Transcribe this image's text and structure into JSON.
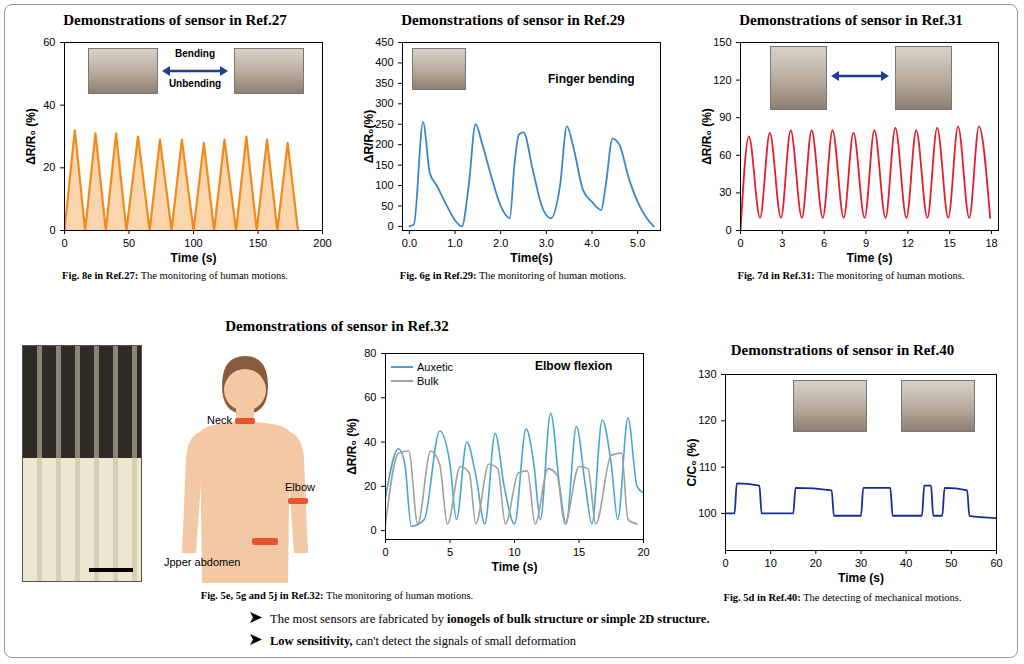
{
  "chart_data": [
    {
      "type": "area",
      "title": "Demonstrations of sensor in Ref.27",
      "caption": {
        "ref": "Fig. 8e in Ref.27:",
        "text": "The monitoring of human motions."
      },
      "annotations": [
        "Bending",
        "Unbending"
      ],
      "x_label": "Time (s)",
      "y_label": "ΔR/R₀ (%)",
      "x": [
        0,
        8,
        16,
        24,
        32,
        40,
        48,
        57,
        66,
        74,
        83,
        91,
        100,
        108,
        116,
        124,
        133,
        141,
        149,
        157,
        165,
        173,
        181
      ],
      "values": [
        0,
        32,
        0,
        31,
        0,
        31,
        0,
        30,
        0,
        29,
        0,
        29,
        0,
        28,
        0,
        29,
        0,
        30,
        0,
        29,
        0,
        28,
        0
      ],
      "color": "#f28a1a",
      "xlim": [
        0,
        200
      ],
      "xticks": [
        0,
        50,
        100,
        150,
        200
      ],
      "ylim": [
        0,
        60
      ],
      "yticks": [
        0,
        20,
        40,
        60
      ]
    },
    {
      "type": "line",
      "title": "Demonstrations of sensor in Ref.29",
      "caption": {
        "ref": "Fig. 6g in Ref.29:",
        "text": "The monitoring of human motions."
      },
      "annotations": [
        "Finger bending"
      ],
      "x_label": "Time(s)",
      "y_label": "ΔR/R₀(%)",
      "x": [
        0,
        0.1,
        0.3,
        0.45,
        0.6,
        0.8,
        1.0,
        1.15,
        1.3,
        1.45,
        1.6,
        1.8,
        2.0,
        2.2,
        2.3,
        2.4,
        2.5,
        2.7,
        2.9,
        3.1,
        3.3,
        3.45,
        3.6,
        3.8,
        4.0,
        4.2,
        4.3,
        4.45,
        4.6,
        4.8,
        5.0,
        5.2,
        5.35
      ],
      "values": [
        0,
        5,
        255,
        130,
        100,
        55,
        15,
        0,
        100,
        250,
        200,
        120,
        50,
        20,
        150,
        225,
        230,
        140,
        50,
        20,
        100,
        245,
        190,
        90,
        60,
        40,
        100,
        215,
        200,
        120,
        60,
        20,
        0
      ],
      "color": "#3a86c8",
      "xlim": [
        -0.15,
        5.5
      ],
      "xticks": [
        0,
        1,
        2,
        3,
        4,
        5
      ],
      "ylim": [
        -10,
        450
      ],
      "yticks": [
        0,
        50,
        100,
        150,
        200,
        250,
        300,
        350,
        400,
        450
      ]
    },
    {
      "type": "line",
      "title": "Demonstrations of sensor in Ref.31",
      "caption": {
        "ref": "Fig. 7d in Ref.31:",
        "text": "The monitoring of human motions."
      },
      "annotations": [],
      "x_label": "Time (s)",
      "y_label": "ΔR/R₀ (%)",
      "x": [
        0,
        0.6,
        1.4,
        2.1,
        2.9,
        3.6,
        4.4,
        5.1,
        5.9,
        6.6,
        7.4,
        8.1,
        8.9,
        9.6,
        10.4,
        11.1,
        11.9,
        12.6,
        13.4,
        14.1,
        14.9,
        15.6,
        16.4,
        17.1,
        17.9
      ],
      "values": [
        0,
        75,
        10,
        78,
        10,
        80,
        10,
        80,
        10,
        80,
        10,
        78,
        10,
        80,
        10,
        82,
        10,
        80,
        10,
        82,
        10,
        83,
        10,
        83,
        10
      ],
      "color": "#e0202a",
      "xlim": [
        0,
        18.5
      ],
      "xticks": [
        0,
        3,
        6,
        9,
        12,
        15,
        18
      ],
      "ylim": [
        0,
        150
      ],
      "yticks": [
        0,
        30,
        60,
        90,
        120,
        150
      ]
    },
    {
      "type": "line",
      "title": "Demonstrations of sensor in Ref.32",
      "caption": {
        "ref": "Fig. 5e, 5g and 5j in Ref.32:",
        "text": "The monitoring of human motions."
      },
      "annotations": [
        "Elbow flexion"
      ],
      "figure_labels": [
        "Neck",
        "Elbow",
        "Jpper abdomen"
      ],
      "x_label": "Time (s)",
      "y_label": "ΔR/R₀ (%)",
      "legend": "top-left",
      "series": [
        {
          "name": "Auxetic",
          "color": "#4ba6cf",
          "x": [
            0,
            1,
            1.5,
            2,
            3,
            4.2,
            5,
            5.5,
            6.3,
            7,
            7.7,
            8.5,
            9.2,
            10,
            10.9,
            11.5,
            12,
            12.8,
            13.5,
            14,
            14.8,
            15.5,
            16,
            16.8,
            17.5,
            18,
            18.8,
            19.5,
            20
          ],
          "values": [
            15,
            37,
            30,
            2,
            5,
            45,
            30,
            5,
            40,
            25,
            3,
            44,
            20,
            3,
            46,
            30,
            5,
            53,
            20,
            3,
            47,
            20,
            3,
            50,
            30,
            5,
            51,
            20,
            17
          ]
        },
        {
          "name": "Bulk",
          "color": "#a0a0a0",
          "x": [
            0,
            1,
            1.8,
            2.5,
            3.5,
            4.2,
            4.8,
            5.8,
            6.5,
            7,
            8,
            8.7,
            9.3,
            10.3,
            11,
            11.6,
            12.6,
            13.3,
            13.9,
            15,
            15.7,
            16.3,
            17.5,
            18.3,
            18.8,
            19.5
          ],
          "values": [
            3,
            35,
            36,
            3,
            36,
            30,
            3,
            29,
            26,
            3,
            30,
            28,
            3,
            26,
            27,
            3,
            28,
            25,
            3,
            29,
            28,
            3,
            34,
            35,
            5,
            3
          ]
        }
      ],
      "xlim": [
        0,
        20
      ],
      "xticks": [
        0,
        5,
        10,
        15,
        20
      ],
      "ylim": [
        -4,
        80
      ],
      "yticks": [
        0,
        20,
        40,
        60,
        80
      ]
    },
    {
      "type": "line",
      "title": "Demonstrations of sensor in Ref.40",
      "caption": {
        "ref": "Fig. 5d in Ref.40:",
        "text": "The detecting of mechanical motions."
      },
      "annotations": [],
      "x_label": "Time (s)",
      "y_label": "C/C₀ (%)",
      "x": [
        0,
        2,
        2.5,
        7.5,
        8,
        15,
        15.5,
        23.5,
        24,
        30,
        30.5,
        36.5,
        37,
        43.5,
        44,
        45.5,
        46,
        48,
        48.5,
        53.5,
        54,
        60
      ],
      "values": [
        100,
        100,
        106.5,
        106,
        100,
        100,
        105.5,
        105,
        99.5,
        99.5,
        105.5,
        105.5,
        99.5,
        99.5,
        106,
        106,
        99.5,
        99.5,
        105.5,
        105,
        99.5,
        99
      ],
      "color": "#1a2a9a",
      "xlim": [
        0,
        60
      ],
      "xticks": [
        0,
        10,
        20,
        30,
        40,
        50,
        60
      ],
      "ylim": [
        92,
        130
      ],
      "yticks": [
        100,
        110,
        120,
        130
      ]
    }
  ],
  "bullets": [
    [
      {
        "text": "The most sensors are fabricated by ",
        "bold": false
      },
      {
        "text": "ionogels of bulk structure or simple 2D structure.",
        "bold": true
      }
    ],
    [
      {
        "text": "Low sensitivity,",
        "bold": true
      },
      {
        "text": " can't detect the signals of small deformation",
        "bold": false
      }
    ]
  ]
}
